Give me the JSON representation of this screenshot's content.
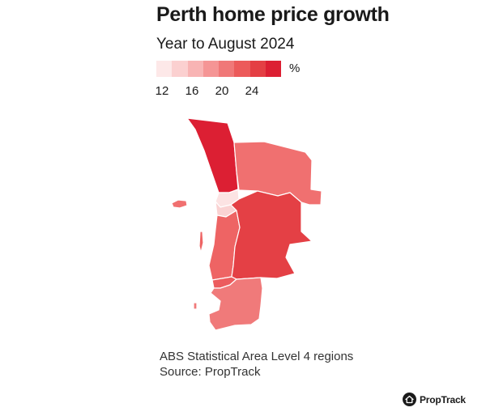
{
  "header": {
    "title": "Perth home price growth",
    "subtitle": "Year to August 2024"
  },
  "legend": {
    "unit": "%",
    "ticks": [
      "12",
      "16",
      "20",
      "24"
    ],
    "scale_min": 8,
    "scale_max": 28,
    "color_steps": [
      "#fde8e8",
      "#fbd0d0",
      "#f8b4b4",
      "#f59595",
      "#f07878",
      "#ec5a5a",
      "#e43f44",
      "#dc1f33"
    ]
  },
  "map": {
    "regions": [
      {
        "id": "wanneroo",
        "growth_pct": 27,
        "color": "#dc1f33"
      },
      {
        "id": "north-east",
        "growth_pct": 21,
        "color": "#f07070"
      },
      {
        "id": "inner-north",
        "growth_pct": 12,
        "color": "#fce3e3"
      },
      {
        "id": "inner-south",
        "growth_pct": 13,
        "color": "#fad2d2"
      },
      {
        "id": "south-west-coast",
        "growth_pct": 22,
        "color": "#ee6464"
      },
      {
        "id": "south-east",
        "growth_pct": 24,
        "color": "#e44045"
      },
      {
        "id": "south-coast-strip",
        "growth_pct": 22,
        "color": "#ec5c5e"
      },
      {
        "id": "mandurah",
        "growth_pct": 20,
        "color": "#f07a7a"
      },
      {
        "id": "rottnest",
        "growth_pct": 21,
        "color": "#f07070"
      }
    ]
  },
  "footer": {
    "note": "ABS Statistical Area Level 4 regions",
    "source": "Source: PropTrack",
    "brand": "PropTrack"
  }
}
